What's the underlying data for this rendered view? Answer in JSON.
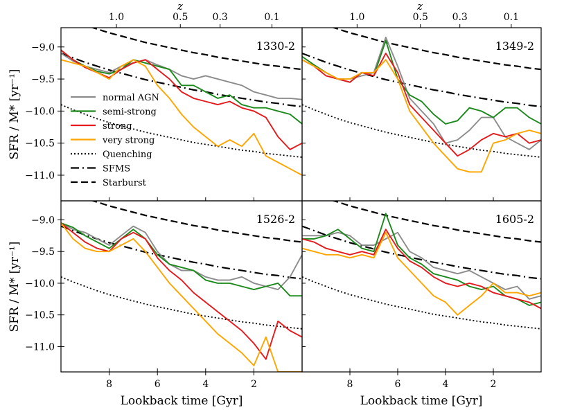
{
  "figure": {
    "ylabel": "SFR / M* [yr⁻¹]",
    "xlabel": "Lookback time [Gyr]",
    "top_axis_label": "z"
  },
  "colors": {
    "normal AGN": "#8c8c8c",
    "semi-strong": "#1c8a1c",
    "strong": "#e41a1c",
    "very strong": "#ffa500",
    "reference": "#000000"
  },
  "legend": {
    "placement": "top-left of first panel",
    "entries": [
      {
        "label": "normal AGN",
        "style": "solid",
        "color_key": "normal AGN"
      },
      {
        "label": "semi-strong",
        "style": "solid",
        "color_key": "semi-strong"
      },
      {
        "label": "strong",
        "style": "solid",
        "color_key": "strong"
      },
      {
        "label": "very strong",
        "style": "solid",
        "color_key": "very strong"
      },
      {
        "label": "Quenching",
        "style": "dotted",
        "color_key": "reference"
      },
      {
        "label": "SFMS",
        "style": "dashdot",
        "color_key": "reference"
      },
      {
        "label": "Starburst",
        "style": "dashed",
        "color_key": "reference"
      }
    ]
  },
  "chart_data": [
    {
      "type": "line",
      "title": "1330-2",
      "xlim": [
        10.0,
        0.0
      ],
      "ylim": [
        -11.4,
        -8.7
      ],
      "x_ticks": [
        8,
        6,
        4,
        2
      ],
      "y_ticks": [
        -9.0,
        -9.5,
        -10.0,
        -10.5,
        -11.0
      ],
      "z_ticks": [
        "1.0",
        "0.5",
        "0.3",
        "0.1"
      ],
      "x": [
        10.0,
        9.5,
        9.0,
        8.5,
        8.0,
        7.5,
        7.0,
        6.5,
        6.0,
        5.5,
        5.0,
        4.5,
        4.0,
        3.5,
        3.0,
        2.5,
        2.0,
        1.5,
        1.0,
        0.5,
        0.0
      ],
      "series": [
        {
          "name": "normal AGN",
          "values": [
            -9.1,
            -9.22,
            -9.3,
            -9.35,
            -9.4,
            -9.3,
            -9.25,
            -9.2,
            -9.28,
            -9.35,
            -9.45,
            -9.5,
            -9.45,
            -9.5,
            -9.55,
            -9.6,
            -9.7,
            -9.75,
            -9.8,
            -9.8,
            -9.82
          ]
        },
        {
          "name": "semi-strong",
          "values": [
            -9.05,
            -9.2,
            -9.3,
            -9.38,
            -9.42,
            -9.35,
            -9.2,
            -9.25,
            -9.3,
            -9.35,
            -9.6,
            -9.6,
            -9.7,
            -9.8,
            -9.75,
            -9.9,
            -9.95,
            -9.95,
            -10.0,
            -10.05,
            -10.2
          ]
        },
        {
          "name": "strong",
          "values": [
            -9.05,
            -9.2,
            -9.32,
            -9.4,
            -9.48,
            -9.35,
            -9.25,
            -9.2,
            -9.35,
            -9.5,
            -9.7,
            -9.8,
            -9.85,
            -9.9,
            -9.85,
            -9.95,
            -10.0,
            -10.1,
            -10.4,
            -10.6,
            -10.5
          ]
        },
        {
          "name": "very strong",
          "values": [
            -9.2,
            -9.25,
            -9.3,
            -9.4,
            -9.5,
            -9.3,
            -9.2,
            -9.3,
            -9.6,
            -9.8,
            -10.05,
            -10.25,
            -10.4,
            -10.55,
            -10.45,
            -10.55,
            -10.35,
            -10.7,
            -10.8,
            -10.9,
            -11.0
          ]
        },
        {
          "name": "Quenching",
          "values": [
            -9.9,
            -9.98,
            -10.05,
            -10.12,
            -10.18,
            -10.23,
            -10.28,
            -10.33,
            -10.37,
            -10.41,
            -10.45,
            -10.49,
            -10.52,
            -10.55,
            -10.58,
            -10.61,
            -10.63,
            -10.66,
            -10.68,
            -10.7,
            -10.72
          ]
        },
        {
          "name": "SFMS",
          "values": [
            -9.1,
            -9.17,
            -9.24,
            -9.3,
            -9.36,
            -9.41,
            -9.46,
            -9.51,
            -9.55,
            -9.59,
            -9.63,
            -9.67,
            -9.7,
            -9.74,
            -9.77,
            -9.8,
            -9.83,
            -9.86,
            -9.88,
            -9.91,
            -9.93
          ]
        },
        {
          "name": "Starburst",
          "values": [
            -8.52,
            -8.59,
            -8.66,
            -8.72,
            -8.78,
            -8.83,
            -8.88,
            -8.93,
            -8.97,
            -9.01,
            -9.05,
            -9.09,
            -9.12,
            -9.16,
            -9.19,
            -9.22,
            -9.25,
            -9.28,
            -9.3,
            -9.33,
            -9.35
          ]
        }
      ]
    },
    {
      "type": "line",
      "title": "1349-2",
      "xlim": [
        10.0,
        0.0
      ],
      "ylim": [
        -11.4,
        -8.7
      ],
      "x_ticks": [
        8,
        6,
        4,
        2
      ],
      "y_ticks": [
        -9.0,
        -9.5,
        -10.0,
        -10.5,
        -11.0
      ],
      "z_ticks": [
        "1.0",
        "0.5",
        "0.3",
        "0.1"
      ],
      "x": [
        10.0,
        9.5,
        9.0,
        8.5,
        8.0,
        7.5,
        7.0,
        6.5,
        6.0,
        5.5,
        5.0,
        4.5,
        4.0,
        3.5,
        3.0,
        2.5,
        2.0,
        1.5,
        1.0,
        0.5,
        0.0
      ],
      "series": [
        {
          "name": "normal AGN",
          "values": [
            -9.2,
            -9.3,
            -9.4,
            -9.5,
            -9.5,
            -9.45,
            -9.4,
            -8.85,
            -9.3,
            -9.8,
            -10.0,
            -10.2,
            -10.5,
            -10.45,
            -10.3,
            -10.1,
            -10.1,
            -10.4,
            -10.5,
            -10.6,
            -10.45
          ]
        },
        {
          "name": "semi-strong",
          "values": [
            -9.15,
            -9.28,
            -9.4,
            -9.5,
            -9.55,
            -9.4,
            -9.45,
            -8.9,
            -9.5,
            -9.75,
            -9.85,
            -10.05,
            -10.2,
            -10.15,
            -9.95,
            -10.0,
            -10.1,
            -9.95,
            -9.95,
            -10.1,
            -10.2
          ]
        },
        {
          "name": "strong",
          "values": [
            -9.2,
            -9.3,
            -9.45,
            -9.5,
            -9.55,
            -9.4,
            -9.45,
            -9.1,
            -9.4,
            -9.9,
            -10.1,
            -10.3,
            -10.5,
            -10.7,
            -10.6,
            -10.45,
            -10.35,
            -10.4,
            -10.35,
            -10.5,
            -10.45
          ]
        },
        {
          "name": "very strong",
          "values": [
            -9.2,
            -9.3,
            -9.4,
            -9.5,
            -9.5,
            -9.4,
            -9.4,
            -9.2,
            -9.5,
            -10.0,
            -10.25,
            -10.5,
            -10.7,
            -10.9,
            -10.95,
            -10.95,
            -10.5,
            -10.45,
            -10.35,
            -10.3,
            -10.35
          ]
        },
        {
          "name": "Quenching",
          "values": [
            -9.9,
            -9.98,
            -10.05,
            -10.12,
            -10.18,
            -10.23,
            -10.28,
            -10.33,
            -10.37,
            -10.41,
            -10.45,
            -10.49,
            -10.52,
            -10.55,
            -10.58,
            -10.61,
            -10.63,
            -10.66,
            -10.68,
            -10.7,
            -10.72
          ]
        },
        {
          "name": "SFMS",
          "values": [
            -9.1,
            -9.17,
            -9.24,
            -9.3,
            -9.36,
            -9.41,
            -9.46,
            -9.51,
            -9.55,
            -9.59,
            -9.63,
            -9.67,
            -9.7,
            -9.74,
            -9.77,
            -9.8,
            -9.83,
            -9.86,
            -9.88,
            -9.91,
            -9.93
          ]
        },
        {
          "name": "Starburst",
          "values": [
            -8.52,
            -8.59,
            -8.66,
            -8.72,
            -8.78,
            -8.83,
            -8.88,
            -8.93,
            -8.97,
            -9.01,
            -9.05,
            -9.09,
            -9.12,
            -9.16,
            -9.19,
            -9.22,
            -9.25,
            -9.28,
            -9.3,
            -9.33,
            -9.35
          ]
        }
      ]
    },
    {
      "type": "line",
      "title": "1526-2",
      "xlim": [
        10.0,
        0.0
      ],
      "ylim": [
        -11.4,
        -8.7
      ],
      "x_ticks": [
        8,
        6,
        4,
        2
      ],
      "y_ticks": [
        -9.0,
        -9.5,
        -10.0,
        -10.5,
        -11.0
      ],
      "x": [
        10.0,
        9.5,
        9.0,
        8.5,
        8.0,
        7.5,
        7.0,
        6.5,
        6.0,
        5.5,
        5.0,
        4.5,
        4.0,
        3.5,
        3.0,
        2.5,
        2.0,
        1.5,
        1.0,
        0.5,
        0.0
      ],
      "series": [
        {
          "name": "normal AGN",
          "values": [
            -9.05,
            -9.15,
            -9.2,
            -9.3,
            -9.4,
            -9.25,
            -9.1,
            -9.2,
            -9.5,
            -9.7,
            -9.8,
            -9.8,
            -9.9,
            -9.95,
            -9.95,
            -9.9,
            -10.0,
            -10.05,
            -10.1,
            -9.9,
            -9.55
          ]
        },
        {
          "name": "semi-strong",
          "values": [
            -9.05,
            -9.12,
            -9.25,
            -9.35,
            -9.45,
            -9.3,
            -9.15,
            -9.3,
            -9.55,
            -9.7,
            -9.75,
            -9.8,
            -9.95,
            -10.0,
            -10.0,
            -10.05,
            -10.1,
            -10.05,
            -10.0,
            -10.2,
            -10.2
          ]
        },
        {
          "name": "strong",
          "values": [
            -9.05,
            -9.2,
            -9.35,
            -9.45,
            -9.5,
            -9.3,
            -9.2,
            -9.3,
            -9.6,
            -9.8,
            -9.95,
            -10.15,
            -10.3,
            -10.45,
            -10.6,
            -10.75,
            -10.95,
            -11.2,
            -10.6,
            -10.75,
            -10.85
          ]
        },
        {
          "name": "very strong",
          "values": [
            -9.05,
            -9.3,
            -9.45,
            -9.5,
            -9.5,
            -9.4,
            -9.3,
            -9.5,
            -9.75,
            -10.0,
            -10.2,
            -10.4,
            -10.6,
            -10.8,
            -10.95,
            -11.1,
            -11.3,
            -10.85,
            -11.4,
            -11.4,
            -11.4
          ]
        },
        {
          "name": "Quenching",
          "values": [
            -9.9,
            -9.98,
            -10.05,
            -10.12,
            -10.18,
            -10.23,
            -10.28,
            -10.33,
            -10.37,
            -10.41,
            -10.45,
            -10.49,
            -10.52,
            -10.55,
            -10.58,
            -10.61,
            -10.63,
            -10.66,
            -10.68,
            -10.7,
            -10.72
          ]
        },
        {
          "name": "SFMS",
          "values": [
            -9.1,
            -9.17,
            -9.24,
            -9.3,
            -9.36,
            -9.41,
            -9.46,
            -9.51,
            -9.55,
            -9.59,
            -9.63,
            -9.67,
            -9.7,
            -9.74,
            -9.77,
            -9.8,
            -9.83,
            -9.86,
            -9.88,
            -9.91,
            -9.93
          ]
        },
        {
          "name": "Starburst",
          "values": [
            -8.52,
            -8.59,
            -8.66,
            -8.72,
            -8.78,
            -8.83,
            -8.88,
            -8.93,
            -8.97,
            -9.01,
            -9.05,
            -9.09,
            -9.12,
            -9.16,
            -9.19,
            -9.22,
            -9.25,
            -9.28,
            -9.3,
            -9.33,
            -9.35
          ]
        }
      ]
    },
    {
      "type": "line",
      "title": "1605-2",
      "xlim": [
        10.0,
        0.0
      ],
      "ylim": [
        -11.4,
        -8.7
      ],
      "x_ticks": [
        8,
        6,
        4,
        2
      ],
      "y_ticks": [
        -9.0,
        -9.5,
        -10.0,
        -10.5,
        -11.0
      ],
      "x": [
        10.0,
        9.5,
        9.0,
        8.5,
        8.0,
        7.5,
        7.0,
        6.5,
        6.0,
        5.5,
        5.0,
        4.5,
        4.0,
        3.5,
        3.0,
        2.5,
        2.0,
        1.5,
        1.0,
        0.5,
        0.0
      ],
      "series": [
        {
          "name": "normal AGN",
          "values": [
            -9.25,
            -9.25,
            -9.25,
            -9.2,
            -9.25,
            -9.4,
            -9.4,
            -9.3,
            -9.2,
            -9.5,
            -9.6,
            -9.75,
            -9.8,
            -9.85,
            -9.8,
            -9.9,
            -10.0,
            -10.1,
            -10.05,
            -10.25,
            -10.2
          ]
        },
        {
          "name": "semi-strong",
          "values": [
            -9.3,
            -9.3,
            -9.25,
            -9.15,
            -9.3,
            -9.45,
            -9.5,
            -8.9,
            -9.4,
            -9.6,
            -9.7,
            -9.85,
            -9.9,
            -9.95,
            -10.05,
            -10.1,
            -10.05,
            -10.2,
            -10.25,
            -10.35,
            -10.3
          ]
        },
        {
          "name": "strong",
          "values": [
            -9.3,
            -9.35,
            -9.45,
            -9.5,
            -9.55,
            -9.5,
            -9.55,
            -9.15,
            -9.45,
            -9.65,
            -9.75,
            -9.9,
            -10.0,
            -10.05,
            -10.0,
            -10.05,
            -10.15,
            -10.2,
            -10.25,
            -10.3,
            -10.4
          ]
        },
        {
          "name": "very strong",
          "values": [
            -9.45,
            -9.5,
            -9.55,
            -9.55,
            -9.6,
            -9.55,
            -9.6,
            -9.2,
            -9.6,
            -9.8,
            -10.0,
            -10.2,
            -10.3,
            -10.5,
            -10.35,
            -10.2,
            -10.0,
            -10.15,
            -10.15,
            -10.2,
            -10.15
          ]
        },
        {
          "name": "Quenching",
          "values": [
            -9.9,
            -9.98,
            -10.05,
            -10.12,
            -10.18,
            -10.23,
            -10.28,
            -10.33,
            -10.37,
            -10.41,
            -10.45,
            -10.49,
            -10.52,
            -10.55,
            -10.58,
            -10.61,
            -10.63,
            -10.66,
            -10.68,
            -10.7,
            -10.72
          ]
        },
        {
          "name": "SFMS",
          "values": [
            -9.1,
            -9.17,
            -9.24,
            -9.3,
            -9.36,
            -9.41,
            -9.46,
            -9.51,
            -9.55,
            -9.59,
            -9.63,
            -9.67,
            -9.7,
            -9.74,
            -9.77,
            -9.8,
            -9.83,
            -9.86,
            -9.88,
            -9.91,
            -9.93
          ]
        },
        {
          "name": "Starburst",
          "values": [
            -8.52,
            -8.59,
            -8.66,
            -8.72,
            -8.78,
            -8.83,
            -8.88,
            -8.93,
            -8.97,
            -9.01,
            -9.05,
            -9.09,
            -9.12,
            -9.16,
            -9.19,
            -9.22,
            -9.25,
            -9.28,
            -9.3,
            -9.33,
            -9.35
          ]
        }
      ]
    }
  ]
}
